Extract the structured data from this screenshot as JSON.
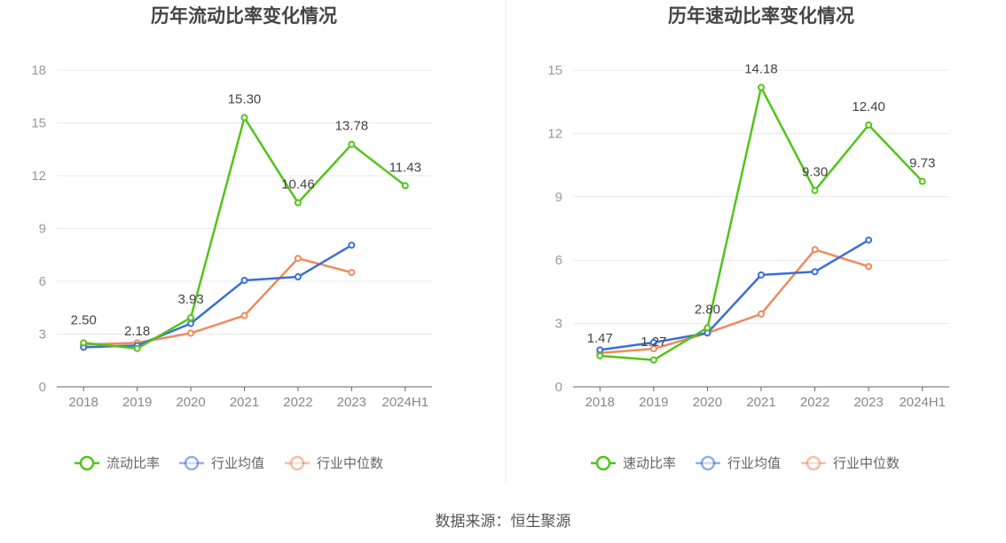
{
  "chart_data": [
    {
      "type": "line",
      "title": "历年流动比率变化情况",
      "categories": [
        "2018",
        "2019",
        "2020",
        "2021",
        "2022",
        "2023",
        "2024H1"
      ],
      "ylim": [
        0,
        18
      ],
      "yticks": [
        "0",
        "3",
        "6",
        "9",
        "12",
        "15",
        "18"
      ],
      "legend_position": "bottom",
      "series": [
        {
          "name": "流动比率",
          "color": "#52c41a",
          "values": [
            2.5,
            2.18,
            3.93,
            15.3,
            10.46,
            13.78,
            11.43
          ],
          "labels": [
            "2.50",
            "2.18",
            "3.93",
            "15.30",
            "10.46",
            "13.78",
            "11.43"
          ],
          "legend_active": true
        },
        {
          "name": "行业均值",
          "color": "#3b6fd8",
          "values": [
            2.25,
            2.35,
            3.6,
            6.05,
            6.25,
            8.05,
            null
          ],
          "legend_active": false
        },
        {
          "name": "行业中位数",
          "color": "#f08a5d",
          "values": [
            2.4,
            2.5,
            3.05,
            4.05,
            7.3,
            6.5,
            null
          ],
          "legend_active": false
        }
      ]
    },
    {
      "type": "line",
      "title": "历年速动比率变化情况",
      "categories": [
        "2018",
        "2019",
        "2020",
        "2021",
        "2022",
        "2023",
        "2024H1"
      ],
      "ylim": [
        0,
        15
      ],
      "yticks": [
        "0",
        "3",
        "6",
        "9",
        "12",
        "15"
      ],
      "legend_position": "bottom",
      "series": [
        {
          "name": "速动比率",
          "color": "#52c41a",
          "values": [
            1.47,
            1.27,
            2.8,
            14.18,
            9.3,
            12.4,
            9.73
          ],
          "labels": [
            "1.47",
            "1.27",
            "2.80",
            "14.18",
            "9.30",
            "12.40",
            "9.73"
          ],
          "legend_active": true
        },
        {
          "name": "行业均值",
          "color": "#3b6fd8",
          "values": [
            1.75,
            2.1,
            2.55,
            5.3,
            5.45,
            6.95,
            null
          ],
          "legend_active": false
        },
        {
          "name": "行业中位数",
          "color": "#f08a5d",
          "values": [
            1.6,
            1.8,
            2.55,
            3.45,
            6.5,
            5.7,
            null
          ],
          "legend_active": false
        }
      ]
    }
  ],
  "footer": {
    "source": "数据来源：恒生聚源"
  }
}
